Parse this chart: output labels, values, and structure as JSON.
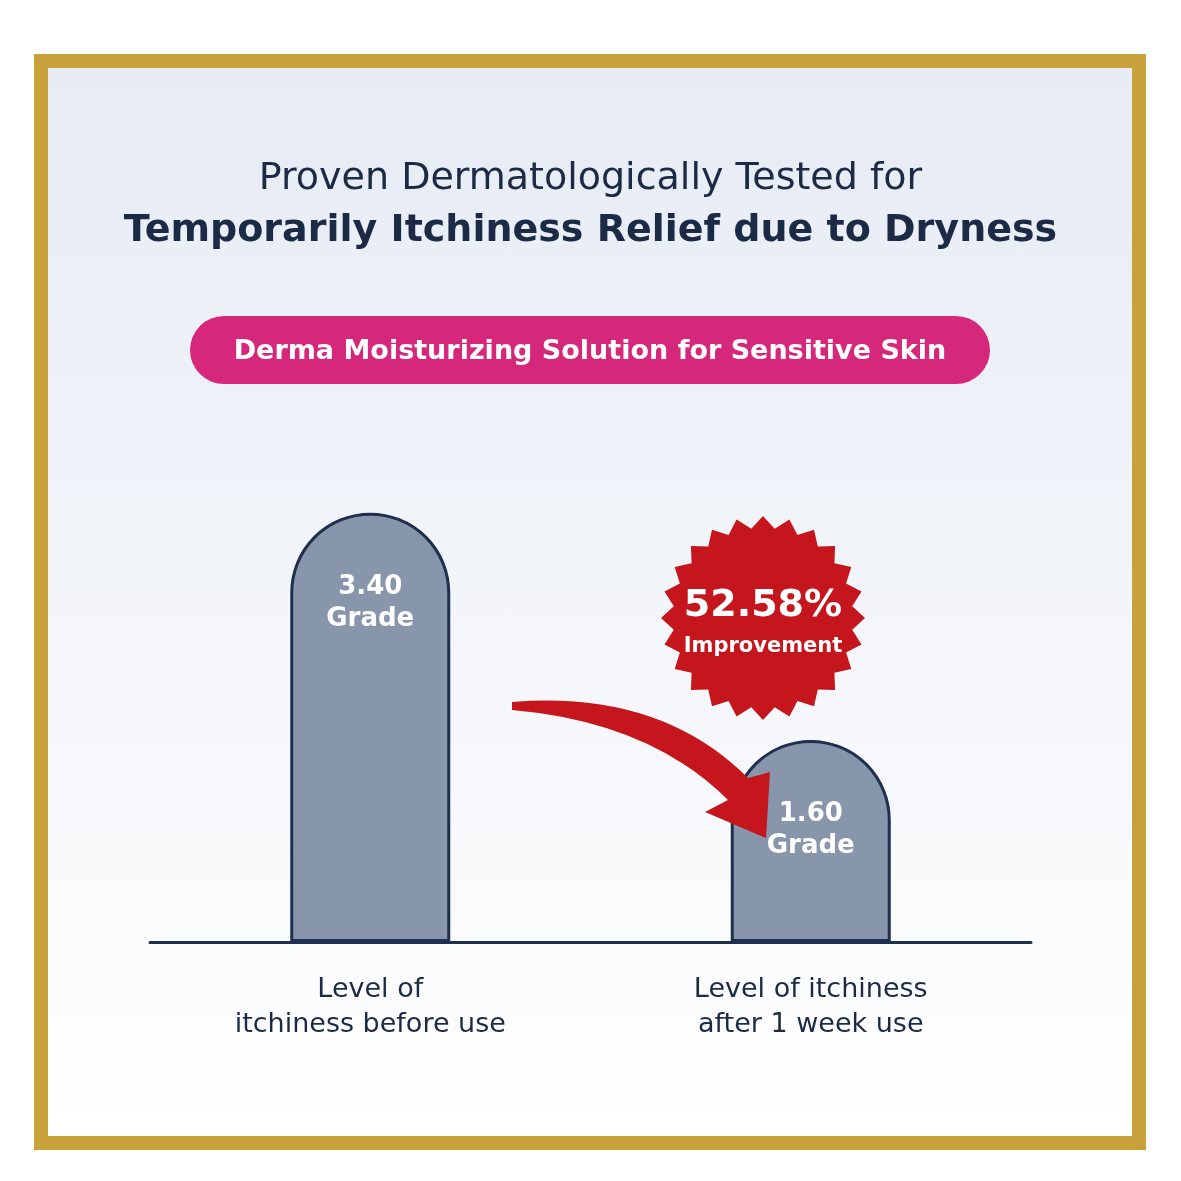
{
  "chart_data": {
    "type": "bar",
    "title": "Proven Dermatologically Tested for\nTemporarily Itchiness Relief due to Dryness",
    "subtitle": "Derma Moisturizing Solution for Sensitive Skin",
    "categories": [
      "Level of\nitchiness before use",
      "Level of itchiness\nafter 1 week use"
    ],
    "values": [
      3.4,
      1.6
    ],
    "color": "#8896ab",
    "value_labels": [
      "3.40\nGrade",
      "1.60\nGrade"
    ],
    "annotations": [
      "52.58%\nImprovement"
    ]
  }
}
